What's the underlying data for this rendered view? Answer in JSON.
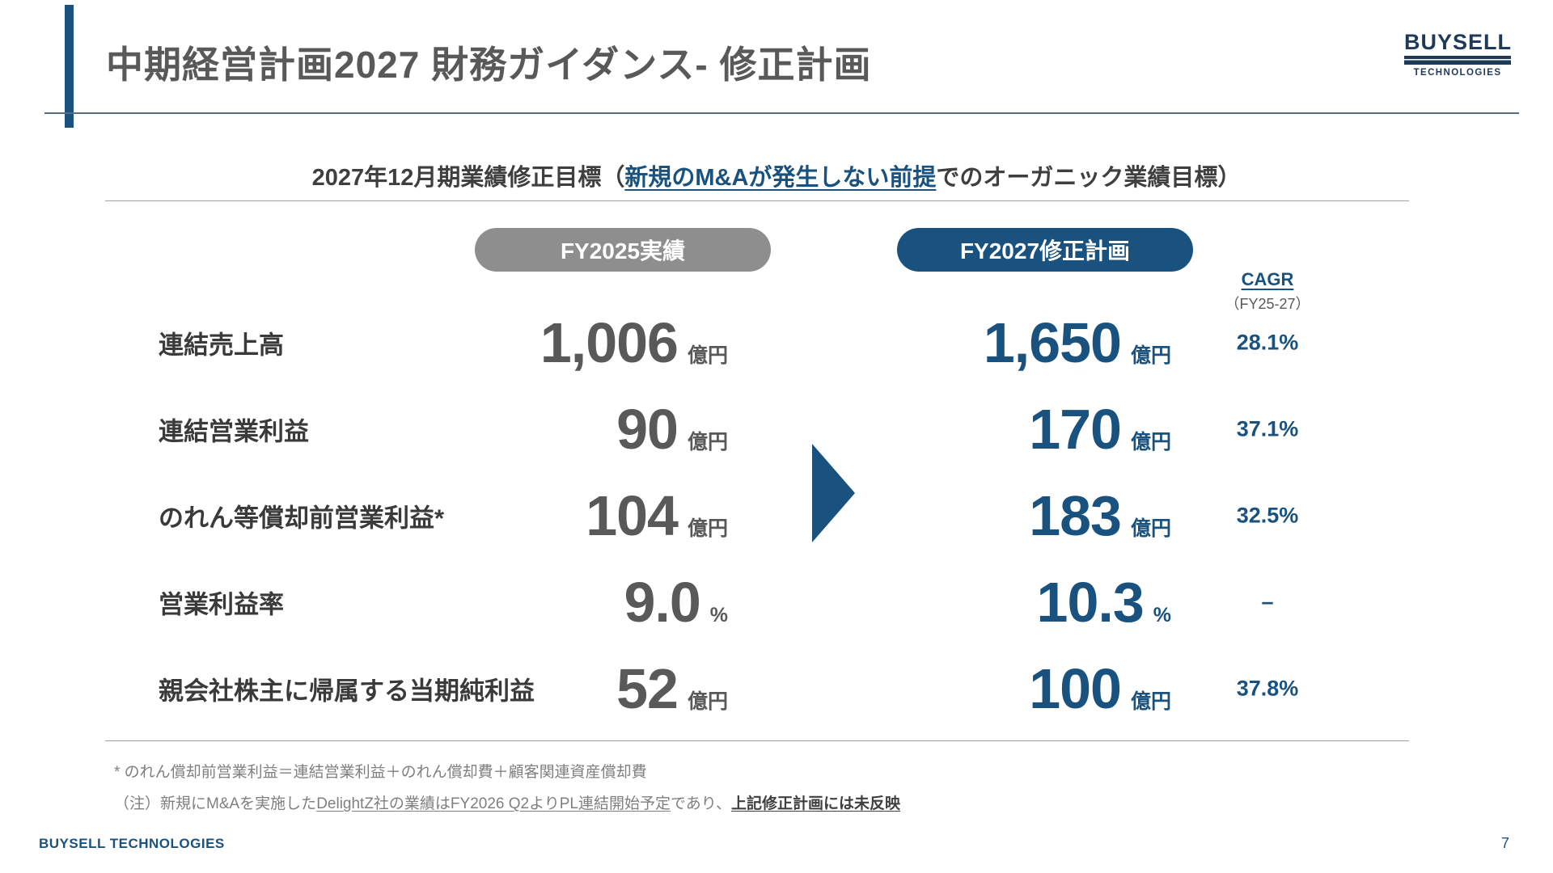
{
  "colors": {
    "navy": "#1a527f",
    "gray_pill": "#8e8e8e",
    "value_gray": "#595959"
  },
  "header": {
    "title": "中期経営計画2027 財務ガイダンス- 修正計画"
  },
  "logo": {
    "line1": "BUYSELL",
    "line2": "TECHNOLOGIES"
  },
  "subtitle": {
    "prefix": "2027年12月期業績修正目標（",
    "underlined": "新規のM&Aが発生しない前提",
    "suffix": "でのオーガニック業績目標）"
  },
  "table": {
    "col_fy2025": "FY2025実績",
    "col_fy2027": "FY2027修正計画",
    "cagr_title": "CAGR",
    "cagr_sub": "（FY25-27）",
    "rows": [
      {
        "label": "連結売上高",
        "fy2025_value": "1,006",
        "fy2025_unit": "億円",
        "fy2027_value": "1,650",
        "fy2027_unit": "億円",
        "cagr": "28.1%"
      },
      {
        "label": "連結営業利益",
        "fy2025_value": "90",
        "fy2025_unit": "億円",
        "fy2027_value": "170",
        "fy2027_unit": "億円",
        "cagr": "37.1%"
      },
      {
        "label": "のれん等償却前営業利益*",
        "fy2025_value": "104",
        "fy2025_unit": "億円",
        "fy2027_value": "183",
        "fy2027_unit": "億円",
        "cagr": "32.5%"
      },
      {
        "label": "営業利益率",
        "fy2025_value": "9.0",
        "fy2025_unit": "%",
        "fy2027_value": "10.3",
        "fy2027_unit": "%",
        "cagr": "–"
      },
      {
        "label": "親会社株主に帰属する当期純利益",
        "fy2025_value": "52",
        "fy2025_unit": "億円",
        "fy2027_value": "100",
        "fy2027_unit": "億円",
        "cagr": "37.8%"
      }
    ]
  },
  "footnotes": {
    "note1": "* のれん償却前営業利益＝連結営業利益＋のれん償却費＋顧客関連資産償却費",
    "note2_prefix": "（注）新規にM&Aを実施した",
    "note2_underlined": "DelightZ社の業績はFY2026 Q2よりPL連結開始予定",
    "note2_middle": "であり、",
    "note2_bold": "上記修正計画には未反映"
  },
  "footer": {
    "company": "BUYSELL TECHNOLOGIES",
    "page_number": "7"
  }
}
